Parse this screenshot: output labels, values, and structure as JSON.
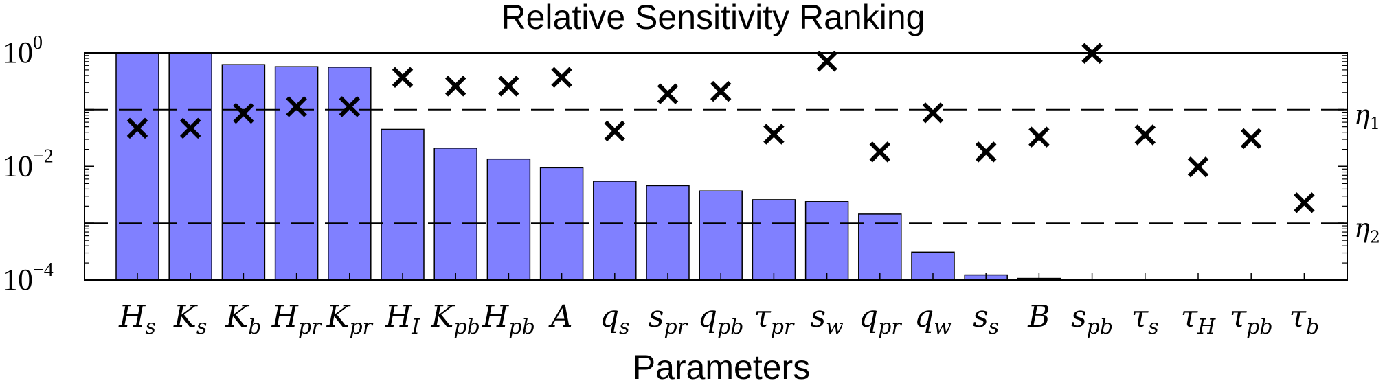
{
  "chart_data": {
    "type": "bar",
    "title": "Relative Sensitivity Ranking",
    "xlabel": "Parameters",
    "ylabel": "",
    "yscale": "log",
    "ylim": [
      0.0001,
      1
    ],
    "ytick_labels": [
      "10",
      "10",
      "10"
    ],
    "ytick_exponents": [
      "0",
      "−2",
      "−4"
    ],
    "ytick_values": [
      1,
      0.01,
      0.0001
    ],
    "grid": false,
    "categories": [
      {
        "base": "H",
        "sub": "s"
      },
      {
        "base": "K",
        "sub": "s"
      },
      {
        "base": "K",
        "sub": "b"
      },
      {
        "base": "H",
        "sub": "pr"
      },
      {
        "base": "K",
        "sub": "pr"
      },
      {
        "base": "H",
        "sub": "I"
      },
      {
        "base": "K",
        "sub": "pb"
      },
      {
        "base": "H",
        "sub": "pb"
      },
      {
        "base": "A",
        "sub": ""
      },
      {
        "base": "q",
        "sub": "s"
      },
      {
        "base": "s",
        "sub": "pr"
      },
      {
        "base": "q",
        "sub": "pb"
      },
      {
        "base": "τ",
        "sub": "pr"
      },
      {
        "base": "s",
        "sub": "w"
      },
      {
        "base": "q",
        "sub": "pr"
      },
      {
        "base": "q",
        "sub": "w"
      },
      {
        "base": "s",
        "sub": "s"
      },
      {
        "base": "B",
        "sub": ""
      },
      {
        "base": "s",
        "sub": "pb"
      },
      {
        "base": "τ",
        "sub": "s"
      },
      {
        "base": "τ",
        "sub": "H"
      },
      {
        "base": "τ",
        "sub": "pb"
      },
      {
        "base": "τ",
        "sub": "b"
      }
    ],
    "series": [
      {
        "kind": "bar",
        "color": "#8080ff",
        "values": [
          1.0,
          1.0,
          0.62,
          0.57,
          0.56,
          0.045,
          0.021,
          0.0135,
          0.0095,
          0.0055,
          0.0046,
          0.0037,
          0.0026,
          0.0024,
          0.00145,
          0.00031,
          0.000123,
          0.000107,
          0.0001,
          0.0001,
          0.0001,
          0.0001,
          0.0001
        ]
      },
      {
        "kind": "marker",
        "marker": "x",
        "color": "#000000",
        "values": [
          0.047,
          0.047,
          0.086,
          0.113,
          0.113,
          0.37,
          0.26,
          0.26,
          0.37,
          0.042,
          0.19,
          0.21,
          0.037,
          0.71,
          0.018,
          0.088,
          0.018,
          0.033,
          0.98,
          0.036,
          0.0098,
          0.031,
          0.0023
        ]
      }
    ],
    "thresholds": [
      {
        "value": 0.1,
        "label": "η",
        "sub": "1",
        "style": "dashed"
      },
      {
        "value": 0.001,
        "label": "η",
        "sub": "2",
        "style": "dashed"
      }
    ]
  }
}
